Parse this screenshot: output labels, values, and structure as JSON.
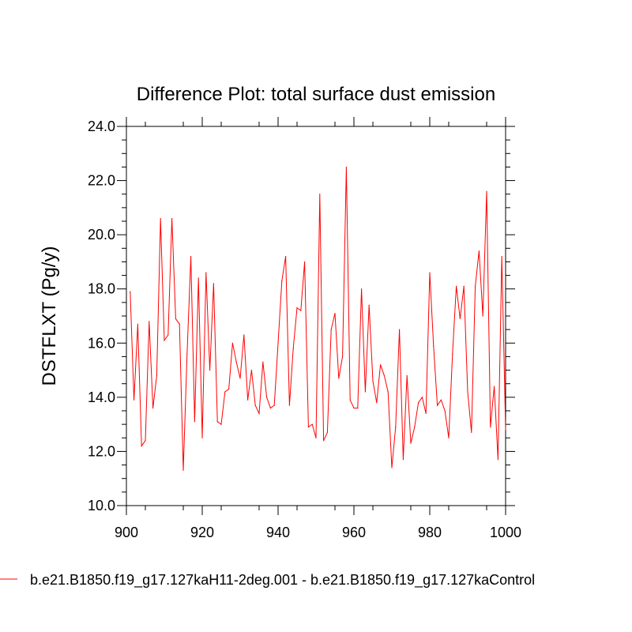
{
  "chart_data": {
    "type": "line",
    "title": "Difference Plot: total surface dust emission",
    "xlabel": "",
    "ylabel": "DSTFLXT  (Pg/y)",
    "xlim": [
      900,
      1000
    ],
    "ylim": [
      10.0,
      24.0
    ],
    "x_ticks": [
      "900",
      "920",
      "940",
      "960",
      "980",
      "1000"
    ],
    "y_ticks": [
      "10.0",
      "12.0",
      "14.0",
      "16.0",
      "18.0",
      "20.0",
      "22.0",
      "24.0"
    ],
    "grid": false,
    "legend": "bottom",
    "series": [
      {
        "name": "b.e21.B1850.f19_g17.127kaH11-2deg.001 - b.e21.B1850.f19_g17.127kaControl",
        "color": "#ff0000",
        "x": [
          901,
          902,
          903,
          904,
          905,
          906,
          907,
          908,
          909,
          910,
          911,
          912,
          913,
          914,
          915,
          916,
          917,
          918,
          919,
          920,
          921,
          922,
          923,
          924,
          925,
          926,
          927,
          928,
          929,
          930,
          931,
          932,
          933,
          934,
          935,
          936,
          937,
          938,
          939,
          940,
          941,
          942,
          943,
          944,
          945,
          946,
          947,
          948,
          949,
          950,
          951,
          952,
          953,
          954,
          955,
          956,
          957,
          958,
          959,
          960,
          961,
          962,
          963,
          964,
          965,
          966,
          967,
          968,
          969,
          970,
          971,
          972,
          973,
          974,
          975,
          976,
          977,
          978,
          979,
          980,
          981,
          982,
          983,
          984,
          985,
          986,
          987,
          988,
          989,
          990,
          991,
          992,
          993,
          994,
          995,
          996,
          997,
          998,
          999,
          1000
        ],
        "values": [
          17.9,
          13.9,
          16.7,
          12.2,
          12.4,
          16.8,
          13.6,
          14.8,
          20.6,
          16.1,
          16.3,
          20.6,
          16.9,
          16.7,
          11.3,
          15.6,
          19.2,
          13.1,
          18.4,
          12.5,
          18.6,
          15.0,
          18.2,
          13.1,
          13.0,
          14.2,
          14.3,
          16.0,
          15.3,
          14.7,
          16.3,
          13.9,
          15.0,
          13.7,
          13.4,
          15.3,
          14.0,
          13.6,
          13.7,
          16.0,
          18.3,
          19.2,
          13.7,
          15.8,
          17.3,
          17.2,
          19.0,
          12.9,
          13.0,
          12.5,
          21.5,
          12.4,
          12.7,
          16.5,
          17.1,
          14.7,
          15.5,
          22.5,
          13.9,
          13.6,
          13.6,
          18.0,
          14.2,
          17.4,
          14.6,
          13.8,
          15.2,
          14.8,
          14.2,
          11.4,
          12.9,
          16.5,
          11.7,
          14.8,
          12.3,
          12.9,
          13.8,
          14.0,
          13.4,
          18.6,
          15.9,
          13.7,
          13.9,
          13.5,
          12.5,
          15.6,
          18.1,
          16.9,
          18.1,
          14.2,
          12.7,
          18.1,
          19.4,
          17.0,
          21.6,
          12.9,
          14.4,
          11.7,
          19.2,
          12.8
        ]
      }
    ]
  }
}
